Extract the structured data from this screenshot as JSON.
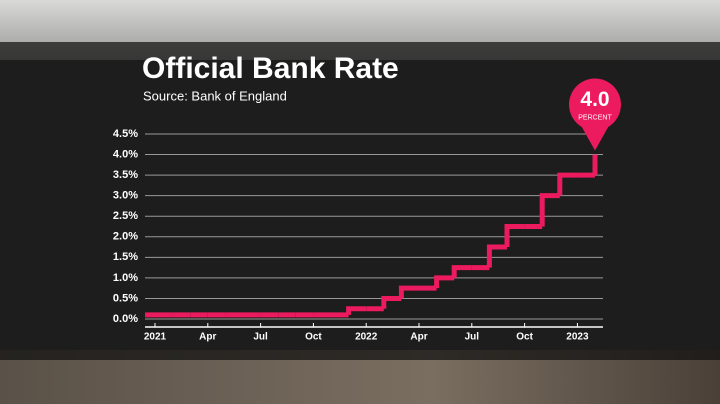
{
  "chart_data": {
    "type": "step",
    "title": "Official Bank Rate",
    "subtitle": "Source: Bank of England",
    "categories": [
      "2021",
      null,
      null,
      "Apr",
      null,
      null,
      "Jul",
      null,
      null,
      "Oct",
      null,
      null,
      "2022",
      null,
      null,
      "Apr",
      null,
      null,
      "Jul",
      null,
      null,
      "Oct",
      null,
      null,
      "2023",
      null
    ],
    "values": [
      0.1,
      0.1,
      0.1,
      0.1,
      0.1,
      0.1,
      0.1,
      0.1,
      0.1,
      0.1,
      0.1,
      0.25,
      0.25,
      0.5,
      0.75,
      0.75,
      1.0,
      1.25,
      1.25,
      1.75,
      2.25,
      2.25,
      3.0,
      3.5,
      3.5,
      4.0
    ],
    "value_labels": [
      null,
      null,
      null,
      null,
      null,
      null,
      null,
      null,
      null,
      null,
      null,
      null,
      null,
      null,
      null,
      null,
      null,
      null,
      null,
      null,
      null,
      null,
      null,
      null,
      null,
      "4.0"
    ],
    "callout_caption": "PERCENT",
    "color": "#ec1a5f",
    "ylim": [
      0,
      4.5
    ],
    "yticks": [
      {
        "value": 0,
        "label": "0.0%"
      },
      {
        "value": 0.5,
        "label": "0.5%"
      },
      {
        "value": 1,
        "label": "1.0%"
      },
      {
        "value": 1.5,
        "label": "1.5%"
      },
      {
        "value": 2,
        "label": "2.0%"
      },
      {
        "value": 2.5,
        "label": "2.5%"
      },
      {
        "value": 3,
        "label": "3.0%"
      },
      {
        "value": 3.5,
        "label": "3.5%"
      },
      {
        "value": 4,
        "label": "4.0%"
      },
      {
        "value": 4.5,
        "label": "4.5%"
      }
    ],
    "grid": true
  }
}
